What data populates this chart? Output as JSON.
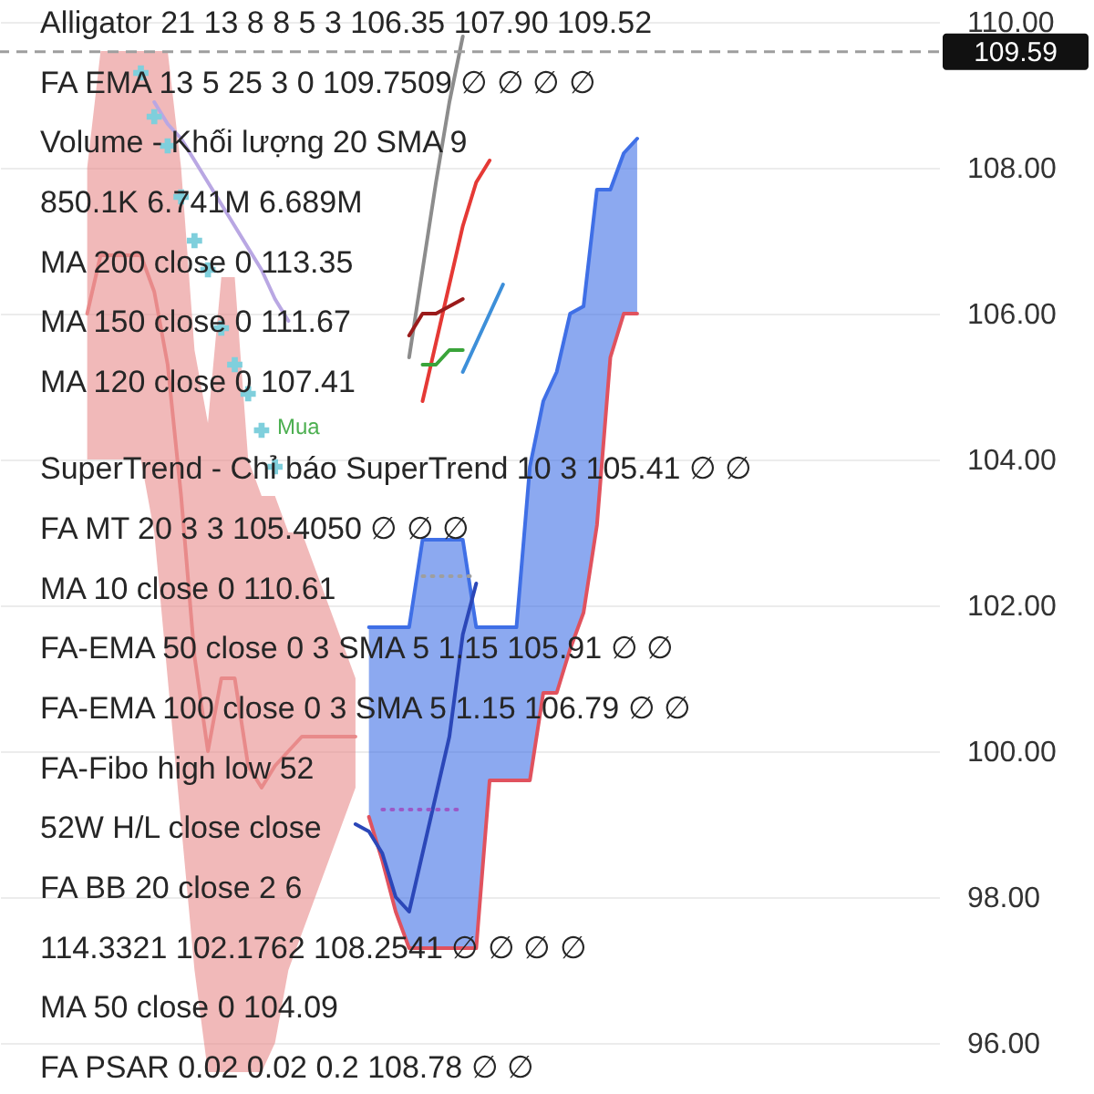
{
  "chart_data": {
    "type": "line",
    "categories": [
      null,
      null,
      null,
      null,
      null,
      null,
      null,
      null,
      null,
      null,
      null,
      null,
      null,
      null,
      null,
      null,
      null,
      null,
      null,
      null,
      null,
      null,
      null,
      null,
      null,
      null,
      null,
      null,
      null,
      null,
      null,
      null,
      null,
      null,
      null,
      null,
      null,
      null,
      null,
      null,
      null,
      null,
      null,
      null,
      null,
      null,
      null,
      null,
      null,
      null,
      null,
      null,
      null,
      null,
      null,
      null,
      null,
      null,
      null,
      null,
      null,
      null,
      null,
      null,
      null,
      null,
      null,
      null,
      null,
      null
    ],
    "series": [
      {
        "color": "#e88a8a",
        "values": [
          null,
          null,
          null,
          null,
          null,
          null,
          106.0,
          106.8,
          106.8,
          106.8,
          106.8,
          106.3,
          105.3,
          103.5,
          101.3,
          100.0,
          101.0,
          101.0,
          99.8,
          99.5,
          99.8,
          100.0,
          100.2,
          100.2,
          100.2,
          100.2,
          100.2,
          null,
          null,
          null,
          null,
          null,
          null,
          null,
          null,
          null,
          null,
          null,
          null,
          null,
          null,
          null,
          null,
          null,
          null,
          null,
          null,
          null,
          null,
          null,
          null,
          null,
          null,
          null,
          null,
          null,
          null,
          null,
          null,
          null,
          null,
          null,
          null,
          null,
          null,
          null,
          null,
          null,
          null,
          null
        ],
        "lower": [
          null,
          null,
          null,
          null,
          null,
          null,
          104.0,
          104.0,
          104.0,
          104.0,
          104.0,
          103.0,
          101.0,
          99.0,
          97.0,
          95.6,
          95.6,
          95.6,
          95.6,
          95.6,
          96.0,
          97.0,
          97.5,
          98.0,
          98.5,
          99.0,
          99.5,
          null,
          null,
          null,
          null,
          null,
          null,
          null,
          null,
          null,
          null,
          null,
          null,
          null,
          null,
          null,
          null,
          null,
          null,
          null,
          null,
          null,
          null,
          null,
          null,
          null,
          null,
          null,
          null,
          null,
          null,
          null,
          null,
          null,
          null,
          null,
          null,
          null,
          null,
          null,
          null,
          null,
          null,
          null
        ],
        "upper": [
          null,
          null,
          null,
          null,
          null,
          null,
          108.0,
          109.6,
          109.6,
          109.6,
          109.6,
          109.6,
          109.6,
          108.0,
          105.5,
          104.5,
          106.5,
          106.5,
          104.0,
          103.5,
          103.5,
          103.0,
          103.0,
          102.5,
          102.0,
          101.5,
          101.0,
          null,
          null,
          null,
          null,
          null,
          null,
          null,
          null,
          null,
          null,
          null,
          null,
          null,
          null,
          null,
          null,
          null,
          null,
          null,
          null,
          null,
          null,
          null,
          null,
          null,
          null,
          null,
          null,
          null,
          null,
          null,
          null,
          null,
          null,
          null,
          null,
          null,
          null,
          null,
          null,
          null,
          null,
          null
        ]
      },
      {
        "color": "#3f6fe6",
        "values": [
          null,
          null,
          null,
          null,
          null,
          null,
          null,
          null,
          null,
          null,
          null,
          null,
          null,
          null,
          null,
          null,
          null,
          null,
          null,
          null,
          null,
          null,
          null,
          null,
          null,
          null,
          null,
          101.7,
          101.7,
          101.7,
          101.7,
          102.9,
          102.9,
          102.9,
          102.9,
          101.7,
          101.7,
          101.7,
          101.7,
          103.9,
          104.8,
          105.2,
          106.0,
          106.1,
          107.7,
          107.7,
          108.2,
          108.4,
          null,
          null,
          null,
          null,
          null,
          null,
          null,
          null,
          null,
          null,
          null,
          null,
          null,
          null,
          null,
          null,
          null,
          null,
          null,
          null,
          null,
          null
        ],
        "lower": [
          null,
          null,
          null,
          null,
          null,
          null,
          null,
          null,
          null,
          null,
          null,
          null,
          null,
          null,
          null,
          null,
          null,
          null,
          null,
          null,
          null,
          null,
          null,
          null,
          null,
          null,
          null,
          99.1,
          98.5,
          97.8,
          97.3,
          97.3,
          97.3,
          97.3,
          97.3,
          97.3,
          99.6,
          99.6,
          99.6,
          99.6,
          100.8,
          100.8,
          101.4,
          101.9,
          103.1,
          105.4,
          106.0,
          106.0,
          null,
          null,
          null,
          null,
          null,
          null,
          null,
          null,
          null,
          null,
          null,
          null,
          null,
          null,
          null,
          null,
          null,
          null,
          null,
          null,
          null,
          null
        ],
        "upper": [
          null,
          null,
          null,
          null,
          null,
          null,
          null,
          null,
          null,
          null,
          null,
          null,
          null,
          null,
          null,
          null,
          null,
          null,
          null,
          null,
          null,
          null,
          null,
          null,
          null,
          null,
          null,
          101.7,
          101.7,
          101.7,
          101.7,
          102.9,
          102.9,
          102.9,
          102.9,
          101.7,
          101.7,
          101.7,
          101.7,
          103.9,
          104.8,
          105.2,
          106.0,
          106.1,
          107.7,
          107.7,
          108.2,
          108.4,
          null,
          null,
          null,
          null,
          null,
          null,
          null,
          null,
          null,
          null,
          null,
          null,
          null,
          null,
          null,
          null,
          null,
          null,
          null,
          null,
          null,
          null
        ]
      },
      {
        "color": "#e0525e",
        "values": [
          null,
          null,
          null,
          null,
          null,
          null,
          null,
          null,
          null,
          null,
          null,
          null,
          null,
          null,
          null,
          null,
          null,
          null,
          null,
          null,
          null,
          null,
          null,
          null,
          null,
          null,
          null,
          99.1,
          98.5,
          97.8,
          97.3,
          97.3,
          97.3,
          97.3,
          97.3,
          97.3,
          99.6,
          99.6,
          99.6,
          99.6,
          100.8,
          100.8,
          101.4,
          101.9,
          103.1,
          105.4,
          106.0,
          106.0,
          null,
          null,
          null,
          null,
          null,
          null,
          null,
          null,
          null,
          null,
          null,
          null,
          null,
          null,
          null,
          null,
          null,
          null,
          null,
          null,
          null,
          null
        ]
      },
      {
        "color": "#2b47b8",
        "values": [
          null,
          null,
          null,
          null,
          null,
          null,
          null,
          null,
          null,
          null,
          null,
          null,
          null,
          null,
          null,
          null,
          null,
          null,
          null,
          null,
          null,
          null,
          null,
          null,
          null,
          null,
          99.0,
          98.9,
          98.6,
          98.0,
          97.8,
          98.6,
          99.4,
          100.2,
          101.6,
          102.3,
          null,
          null,
          null,
          null,
          null,
          null,
          null,
          null,
          null,
          null,
          null,
          null,
          null,
          null,
          null,
          null,
          null,
          null,
          null,
          null,
          null,
          null,
          null,
          null,
          null,
          null,
          null,
          null,
          null,
          null,
          null,
          null,
          null,
          null
        ]
      },
      {
        "color": "#9b59c6",
        "line_style": "dotted",
        "values": [
          null,
          null,
          null,
          null,
          null,
          null,
          null,
          null,
          null,
          null,
          null,
          null,
          null,
          null,
          null,
          null,
          null,
          null,
          null,
          null,
          null,
          null,
          null,
          null,
          null,
          null,
          null,
          null,
          99.2,
          99.2,
          99.2,
          99.2,
          99.2,
          99.2,
          99.2,
          null,
          null,
          null,
          null,
          null,
          null,
          null,
          null,
          null,
          null,
          null,
          null,
          null,
          null,
          null,
          null,
          null,
          null,
          null,
          null,
          null,
          null,
          null,
          null,
          null,
          null,
          null,
          null,
          null,
          null,
          null,
          null,
          null,
          null,
          null
        ]
      },
      {
        "color": "#9e9e9e",
        "line_style": "dotted",
        "values": [
          null,
          null,
          null,
          null,
          null,
          null,
          null,
          null,
          null,
          null,
          null,
          null,
          null,
          null,
          null,
          null,
          null,
          null,
          null,
          null,
          null,
          null,
          null,
          null,
          null,
          null,
          null,
          null,
          null,
          null,
          null,
          102.4,
          102.4,
          102.4,
          102.4,
          102.4,
          null,
          null,
          null,
          null,
          null,
          null,
          null,
          null,
          null,
          null,
          null,
          null,
          null,
          null,
          null,
          null,
          null,
          null,
          null,
          null,
          null,
          null,
          null,
          null,
          null,
          null,
          null,
          null,
          null,
          null,
          null,
          null,
          null,
          null
        ]
      },
      {
        "type": "scatter",
        "marker": "cross",
        "color": "#7fcfdc",
        "values": [
          null,
          null,
          null,
          null,
          null,
          null,
          null,
          null,
          null,
          null,
          109.3,
          108.7,
          108.3,
          107.6,
          107.0,
          106.6,
          105.8,
          105.3,
          104.9,
          104.4,
          103.9,
          null,
          null,
          null,
          null,
          null,
          null,
          null,
          null,
          null,
          null,
          null,
          null,
          null,
          null,
          null,
          null,
          null,
          null,
          null,
          null,
          null,
          null,
          null,
          null,
          null,
          null,
          null,
          null,
          null,
          null,
          null,
          null,
          null,
          null,
          null,
          null,
          null,
          null,
          null,
          null,
          null,
          null,
          null,
          null,
          null,
          null,
          null,
          null,
          null
        ]
      },
      {
        "color": "#b9a7e3",
        "values": [
          null,
          null,
          null,
          null,
          null,
          null,
          null,
          null,
          null,
          null,
          null,
          108.9,
          108.6,
          108.4,
          108.1,
          107.8,
          107.5,
          107.2,
          106.9,
          106.6,
          106.2,
          105.9,
          null,
          null,
          null,
          null,
          null,
          null,
          null,
          null,
          null,
          null,
          null,
          null,
          null,
          null,
          null,
          null,
          null,
          null,
          null,
          null,
          null,
          null,
          null,
          null,
          null,
          null,
          null,
          null,
          null,
          null,
          null,
          null,
          null,
          null,
          null,
          null,
          null,
          null,
          null,
          null,
          null,
          null,
          null,
          null,
          null,
          null,
          null,
          null
        ]
      },
      {
        "color": "#8c8c8c",
        "values": [
          null,
          null,
          null,
          null,
          null,
          null,
          null,
          null,
          null,
          null,
          null,
          null,
          null,
          null,
          null,
          null,
          null,
          null,
          null,
          null,
          null,
          null,
          null,
          null,
          null,
          null,
          null,
          null,
          null,
          null,
          105.4,
          106.6,
          107.8,
          108.9,
          109.8,
          null,
          null,
          null,
          null,
          null,
          null,
          null,
          null,
          null,
          null,
          null,
          null,
          null,
          null,
          null,
          null,
          null,
          null,
          null,
          null,
          null,
          null,
          null,
          null,
          null,
          null,
          null,
          null,
          null,
          null,
          null,
          null,
          null,
          null,
          null
        ]
      },
      {
        "color": "#e53935",
        "values": [
          null,
          null,
          null,
          null,
          null,
          null,
          null,
          null,
          null,
          null,
          null,
          null,
          null,
          null,
          null,
          null,
          null,
          null,
          null,
          null,
          null,
          null,
          null,
          null,
          null,
          null,
          null,
          null,
          null,
          null,
          null,
          104.8,
          105.6,
          106.4,
          107.2,
          107.8,
          108.1,
          null,
          null,
          null,
          null,
          null,
          null,
          null,
          null,
          null,
          null,
          null,
          null,
          null,
          null,
          null,
          null,
          null,
          null,
          null,
          null,
          null,
          null,
          null,
          null,
          null,
          null,
          null,
          null,
          null,
          null,
          null,
          null,
          null
        ]
      },
      {
        "color": "#3d8fd9",
        "values": [
          null,
          null,
          null,
          null,
          null,
          null,
          null,
          null,
          null,
          null,
          null,
          null,
          null,
          null,
          null,
          null,
          null,
          null,
          null,
          null,
          null,
          null,
          null,
          null,
          null,
          null,
          null,
          null,
          null,
          null,
          null,
          null,
          null,
          null,
          105.2,
          105.6,
          106.0,
          106.4,
          null,
          null,
          null,
          null,
          null,
          null,
          null,
          null,
          null,
          null,
          null,
          null,
          null,
          null,
          null,
          null,
          null,
          null,
          null,
          null,
          null,
          null,
          null,
          null,
          null,
          null,
          null,
          null,
          null,
          null,
          null,
          null
        ]
      },
      {
        "color": "#9b1b1b",
        "values": [
          null,
          null,
          null,
          null,
          null,
          null,
          null,
          null,
          null,
          null,
          null,
          null,
          null,
          null,
          null,
          null,
          null,
          null,
          null,
          null,
          null,
          null,
          null,
          null,
          null,
          null,
          null,
          null,
          null,
          null,
          105.7,
          106.0,
          106.0,
          106.1,
          106.2,
          null,
          null,
          null,
          null,
          null,
          null,
          null,
          null,
          null,
          null,
          null,
          null,
          null,
          null,
          null,
          null,
          null,
          null,
          null,
          null,
          null,
          null,
          null,
          null,
          null,
          null,
          null,
          null,
          null,
          null,
          null,
          null,
          null,
          null,
          null
        ]
      },
      {
        "color": "#3aa43a",
        "values": [
          null,
          null,
          null,
          null,
          null,
          null,
          null,
          null,
          null,
          null,
          null,
          null,
          null,
          null,
          null,
          null,
          null,
          null,
          null,
          null,
          null,
          null,
          null,
          null,
          null,
          null,
          null,
          null,
          null,
          null,
          null,
          105.3,
          105.3,
          105.5,
          105.5,
          null,
          null,
          null,
          null,
          null,
          null,
          null,
          null,
          null,
          null,
          null,
          null,
          null,
          null,
          null,
          null,
          null,
          null,
          null,
          null,
          null,
          null,
          null,
          null,
          null,
          null,
          null,
          null,
          null,
          null,
          null,
          null,
          null,
          null,
          null
        ]
      }
    ],
    "ylim": [
      95.3,
      110
    ],
    "yticks": [
      {
        "value": 96,
        "label": "96.00"
      },
      {
        "value": 98,
        "label": "98.00"
      },
      {
        "value": 100,
        "label": "100.00"
      },
      {
        "value": 102,
        "label": "102.00"
      },
      {
        "value": 104,
        "label": "104.00"
      },
      {
        "value": 106,
        "label": "106.00"
      },
      {
        "value": 108,
        "label": "108.00"
      },
      {
        "value": 110,
        "label": "110.00"
      }
    ],
    "grid": "y",
    "tick_labels": "y",
    "ref_lines": [
      {
        "axis": "y",
        "value": 109.59,
        "label": "109.59",
        "color": "#9e9e9e",
        "line_style": "dashed"
      }
    ],
    "annotations": [
      "Alligator 21 13 8 8 5 3 106.35 107.90 109.52",
      "FA EMA 13 5 25 3 0 109.7509 ∅ ∅ ∅ ∅",
      "Volume - Khối lượng 20 SMA 9",
      "850.1K 6.741M 6.689M",
      "MA 200 close 0 113.35",
      "MA 150 close 0 111.67",
      "MA 120 close 0 107.41",
      "Mua",
      "SuperTrend - Chỉ báo SuperTrend 10 3 105.41 ∅ ∅",
      "FA MT 20 3 3 105.4050 ∅ ∅ ∅",
      "MA 10 close 0 110.61",
      "FA-EMA 50 close 0 3 SMA 5 1.15 105.91 ∅ ∅",
      "FA-EMA 100 close 0 3 SMA 5 1.15 106.79 ∅ ∅",
      "FA-Fibo high low 52",
      "52W H/L close close",
      "FA BB 20 close 2 6",
      "114.3321 102.1762 108.2541 ∅ ∅ ∅ ∅",
      "MA 50 close 0 104.09",
      "FA PSAR 0.02 0.02 0.2 108.78 ∅ ∅"
    ]
  }
}
